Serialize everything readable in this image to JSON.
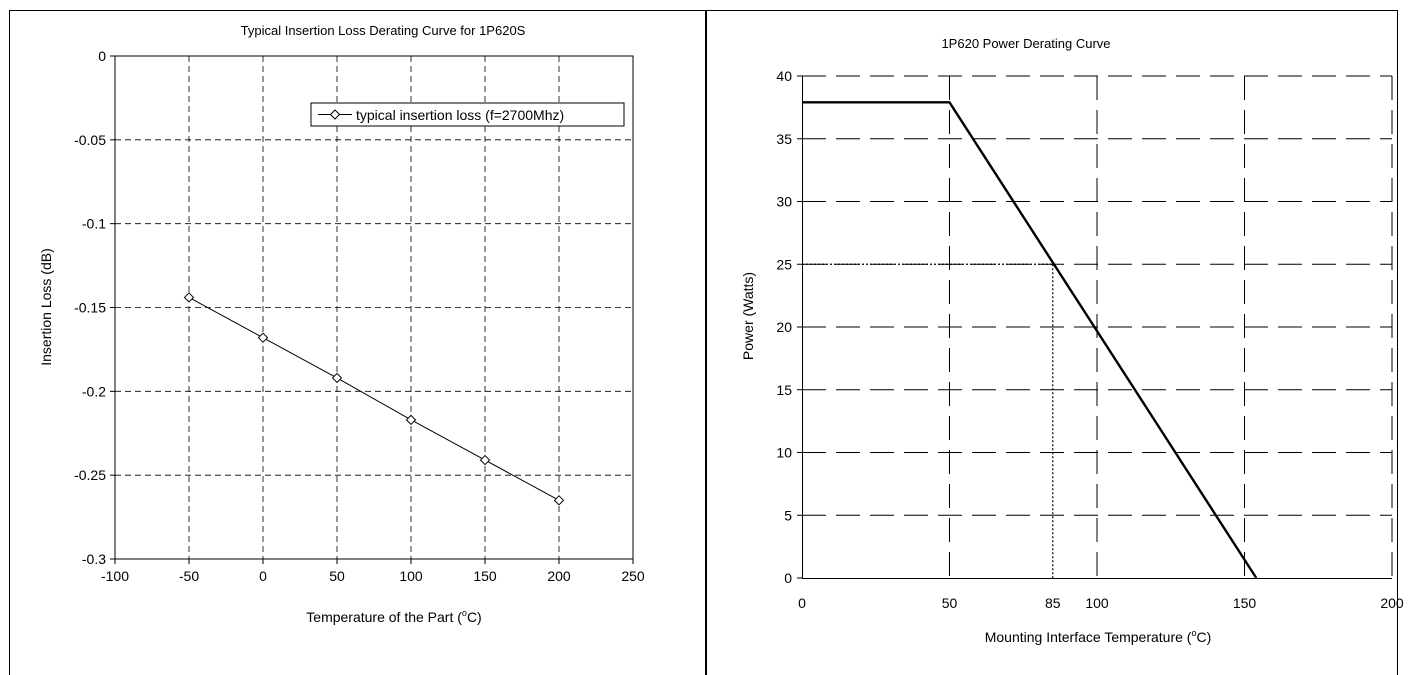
{
  "chart_data": [
    {
      "type": "line",
      "title": "Typical Insertion Loss Derating Curve for 1P620S",
      "xlabel": "Temperature of the Part (",
      "xlabel_sup": "o",
      "xlabel_end": "C)",
      "ylabel": "Insertion Loss (dB)",
      "xlim": [
        -100,
        250
      ],
      "ylim": [
        -0.3,
        0
      ],
      "xticks": [
        -100,
        -50,
        0,
        50,
        100,
        150,
        200,
        250
      ],
      "yticks": [
        0,
        -0.05,
        -0.1,
        -0.15,
        -0.2,
        -0.25,
        -0.3
      ],
      "xtick_labels": [
        "-100",
        "-50",
        "0",
        "50",
        "100",
        "150",
        "200",
        "250"
      ],
      "ytick_labels": [
        "0",
        "-0.05",
        "-0.1",
        "-0.15",
        "-0.2",
        "-0.25",
        "-0.3"
      ],
      "grid": true,
      "legend_position": "top-right",
      "series": [
        {
          "name": "typical insertion loss (f=2700Mhz)",
          "marker": "diamond",
          "x": [
            -50,
            0,
            50,
            100,
            150,
            200
          ],
          "y": [
            -0.144,
            -0.168,
            -0.192,
            -0.217,
            -0.241,
            -0.265
          ]
        }
      ]
    },
    {
      "type": "line",
      "title": "1P620 Power Derating Curve",
      "xlabel": "Mounting Interface Temperature (",
      "xlabel_sup": "o",
      "xlabel_end": "C)",
      "ylabel": "Power (Watts)",
      "xlim": [
        0,
        200
      ],
      "ylim": [
        0,
        40
      ],
      "xticks": [
        0,
        50,
        100,
        150,
        200
      ],
      "yticks": [
        0,
        5,
        10,
        15,
        20,
        25,
        30,
        35,
        40
      ],
      "xtick_labels": [
        "0",
        "50",
        "100",
        "150",
        "200"
      ],
      "ytick_labels": [
        "0",
        "5",
        "10",
        "15",
        "20",
        "25",
        "30",
        "35",
        "40"
      ],
      "extra_xtick_label": "85",
      "grid": true,
      "series": [
        {
          "x": [
            0,
            50,
            154
          ],
          "y": [
            37.9,
            37.9,
            0
          ]
        }
      ],
      "reference_point": {
        "x": 85,
        "y": 25
      }
    }
  ]
}
